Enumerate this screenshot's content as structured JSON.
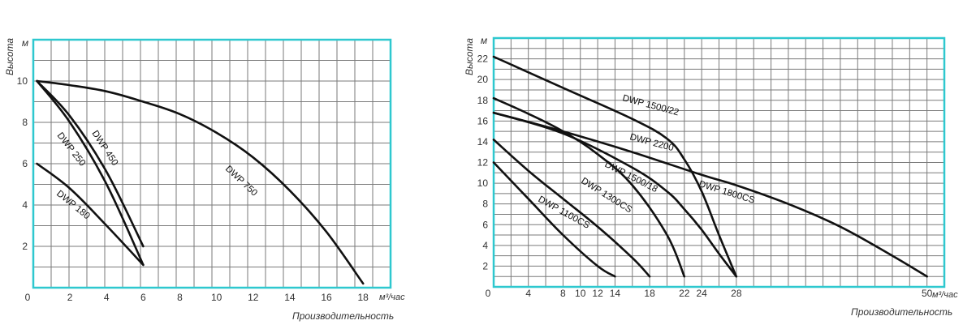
{
  "chart_data": [
    {
      "type": "line",
      "xlabel": "Производительность",
      "ylabel": "Высота",
      "x_unit": "м³/час",
      "y_unit": "м",
      "xlim": [
        0,
        19.5
      ],
      "ylim": [
        0,
        12
      ],
      "x_ticks": [
        0,
        2,
        4,
        6,
        8,
        10,
        12,
        14,
        16,
        18
      ],
      "x_tick_labels": [
        "0",
        "2",
        "4",
        "6",
        "8",
        "10",
        "12",
        "14",
        "16",
        "18"
      ],
      "y_ticks": [
        2,
        4,
        6,
        8,
        10
      ],
      "y_tick_labels": [
        "2",
        "4",
        "6",
        "8",
        "10"
      ],
      "grid": true,
      "series": [
        {
          "name": "DWP 180",
          "x": [
            0.2,
            2,
            4,
            6
          ],
          "y": [
            6,
            4.8,
            3,
            1.1
          ]
        },
        {
          "name": "DWP 250",
          "x": [
            0.2,
            2,
            4,
            6
          ],
          "y": [
            10,
            8,
            5,
            1.1
          ]
        },
        {
          "name": "DWP 450",
          "x": [
            0.2,
            2,
            4,
            6
          ],
          "y": [
            10,
            8.3,
            5.6,
            2
          ]
        },
        {
          "name": "DWP 750",
          "x": [
            0.2,
            2,
            4,
            6,
            8,
            10,
            12,
            14,
            16,
            18
          ],
          "y": [
            10,
            9.8,
            9.5,
            9,
            8.4,
            7.5,
            6.3,
            4.7,
            2.7,
            0.2
          ]
        }
      ]
    },
    {
      "type": "line",
      "xlabel": "Производительность",
      "ylabel": "Высота",
      "x_unit": "м³/час",
      "y_unit": "м",
      "xlim": [
        0,
        52
      ],
      "ylim": [
        0,
        24
      ],
      "x_ticks": [
        0,
        4,
        8,
        10,
        12,
        14,
        18,
        22,
        24,
        28,
        50
      ],
      "x_tick_labels": [
        "0",
        "4",
        "8",
        "10",
        "12",
        "14",
        "18",
        "22",
        "24",
        "28",
        "50"
      ],
      "y_ticks": [
        2,
        4,
        6,
        8,
        10,
        12,
        14,
        16,
        18,
        20,
        22
      ],
      "y_tick_labels": [
        "2",
        "4",
        "6",
        "8",
        "10",
        "12",
        "14",
        "16",
        "18",
        "20",
        "22"
      ],
      "grid": true,
      "series": [
        {
          "name": "DWP 1100CS",
          "x": [
            0,
            4,
            8,
            12,
            14
          ],
          "y": [
            12,
            8.5,
            5,
            2,
            1
          ]
        },
        {
          "name": "DWP 1300CS",
          "x": [
            0,
            4,
            8,
            12,
            16,
            18
          ],
          "y": [
            14.2,
            11.2,
            8.5,
            5.8,
            2.8,
            1
          ]
        },
        {
          "name": "DWP 1500/18",
          "x": [
            0,
            4,
            8,
            12,
            16,
            20,
            22
          ],
          "y": [
            18.2,
            16.7,
            15,
            12.8,
            9.8,
            5,
            1
          ]
        },
        {
          "name": "DWP 1500/22",
          "x": [
            0,
            8,
            16,
            20,
            22,
            24,
            26,
            28
          ],
          "y": [
            22.2,
            19.2,
            16.2,
            14.3,
            12.3,
            9.2,
            5,
            1
          ]
        },
        {
          "name": "DWP 1800CS",
          "x": [
            0,
            8,
            16,
            20,
            22,
            24,
            26,
            28
          ],
          "y": [
            16.8,
            14.8,
            11.5,
            9.2,
            7.5,
            5.5,
            3.2,
            1
          ]
        },
        {
          "name": "DWP 2200",
          "x": [
            0,
            8,
            16,
            24,
            28,
            34,
            40,
            46,
            50
          ],
          "y": [
            16.8,
            15,
            13,
            10.8,
            9.8,
            8,
            5.8,
            3,
            1
          ]
        }
      ]
    }
  ]
}
